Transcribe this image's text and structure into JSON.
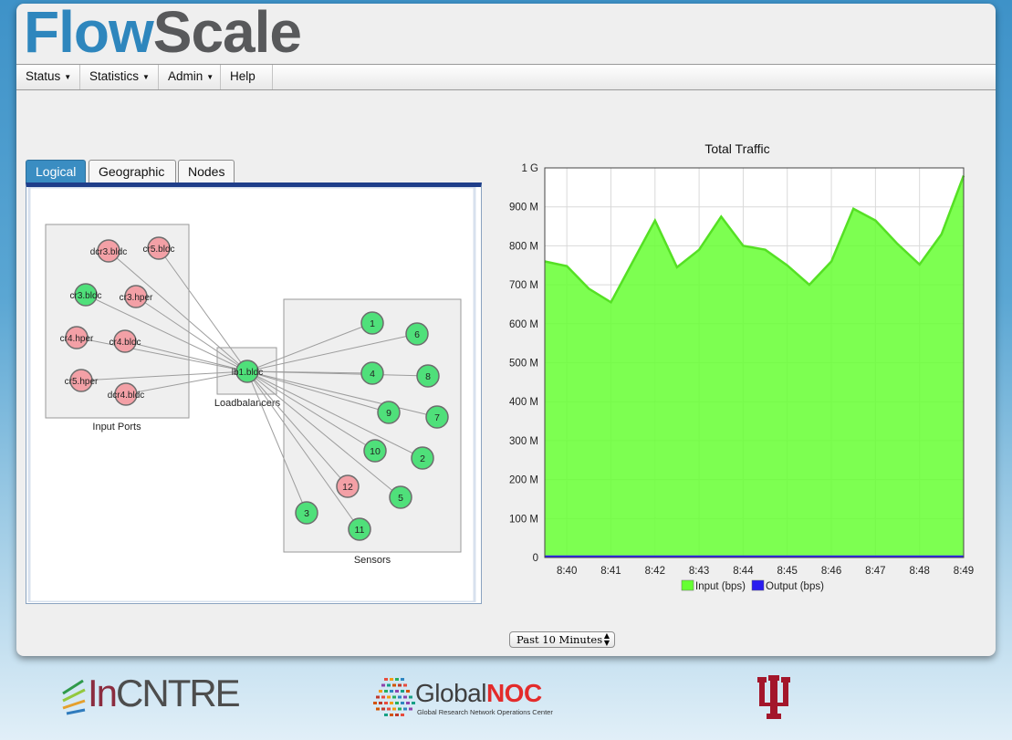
{
  "app": {
    "logo_part1": "Flow",
    "logo_part2": "Scale"
  },
  "menu": [
    {
      "label": "Status",
      "has_dropdown": true
    },
    {
      "label": "Statistics",
      "has_dropdown": true
    },
    {
      "label": "Admin",
      "has_dropdown": true
    },
    {
      "label": "Help",
      "has_dropdown": false
    }
  ],
  "tabs": [
    {
      "label": "Logical",
      "active": true
    },
    {
      "label": "Geographic",
      "active": false
    },
    {
      "label": "Nodes",
      "active": false
    }
  ],
  "topology": {
    "groups": {
      "input_ports": "Input Ports",
      "loadbalancers": "Loadbalancers",
      "sensors": "Sensors"
    },
    "input_ports": [
      {
        "label": "dcr3.bldc",
        "status": "down"
      },
      {
        "label": "cr5.bldc",
        "status": "down"
      },
      {
        "label": "cr3.bldc",
        "status": "up"
      },
      {
        "label": "cr3.hper",
        "status": "down"
      },
      {
        "label": "cr4.hper",
        "status": "down"
      },
      {
        "label": "cr4.bldc",
        "status": "down"
      },
      {
        "label": "cr5.hper",
        "status": "down"
      },
      {
        "label": "dcr4.bldc",
        "status": "down"
      }
    ],
    "loadbalancer": {
      "label": "lb1.bldc",
      "status": "up"
    },
    "sensors": [
      {
        "label": "1",
        "status": "up"
      },
      {
        "label": "6",
        "status": "up"
      },
      {
        "label": "4",
        "status": "up"
      },
      {
        "label": "8",
        "status": "up"
      },
      {
        "label": "9",
        "status": "up"
      },
      {
        "label": "7",
        "status": "up"
      },
      {
        "label": "10",
        "status": "up"
      },
      {
        "label": "2",
        "status": "up"
      },
      {
        "label": "12",
        "status": "down"
      },
      {
        "label": "5",
        "status": "up"
      },
      {
        "label": "3",
        "status": "up"
      },
      {
        "label": "11",
        "status": "up"
      }
    ],
    "colors": {
      "up": "#4fe07a",
      "down": "#f3a0a6"
    }
  },
  "chart_data": {
    "type": "area",
    "title": "Total Traffic",
    "x": [
      "8:39:30",
      "8:40",
      "8:40:30",
      "8:41",
      "8:41:30",
      "8:42",
      "8:42:30",
      "8:43",
      "8:43:30",
      "8:44",
      "8:44:30",
      "8:45",
      "8:45:30",
      "8:46",
      "8:46:30",
      "8:47",
      "8:47:30",
      "8:48",
      "8:48:30",
      "8:49"
    ],
    "x_ticks": [
      "8:40",
      "8:41",
      "8:42",
      "8:43",
      "8:44",
      "8:45",
      "8:46",
      "8:47",
      "8:48",
      "8:49"
    ],
    "y_ticks": [
      "0",
      "100 M",
      "200 M",
      "300 M",
      "400 M",
      "500 M",
      "600 M",
      "700 M",
      "800 M",
      "900 M",
      "1 G"
    ],
    "ylim": [
      0,
      1000000000
    ],
    "series": [
      {
        "name": "Input (bps)",
        "color": "#66ff33",
        "values": [
          760000000,
          748000000,
          690000000,
          655000000,
          760000000,
          865000000,
          745000000,
          790000000,
          875000000,
          800000000,
          790000000,
          750000000,
          700000000,
          760000000,
          895000000,
          865000000,
          805000000,
          752000000,
          830000000,
          980000000
        ]
      },
      {
        "name": "Output (bps)",
        "color": "#2a1cf0",
        "values": [
          0,
          0,
          0,
          0,
          0,
          0,
          0,
          0,
          0,
          0,
          0,
          0,
          0,
          0,
          0,
          0,
          0,
          0,
          0,
          0
        ]
      }
    ],
    "grid": true,
    "legend": "bottom"
  },
  "time_range": {
    "selected": "Past 10 Minutes"
  },
  "footer": {
    "incntre_prefix": "In",
    "incntre_rest": "CNTRE",
    "gnoc_part1": "Global",
    "gnoc_part2": "NOC",
    "gnoc_tagline": "Global Research Network Operations Center",
    "iu_icon": "iu-trident-icon"
  }
}
